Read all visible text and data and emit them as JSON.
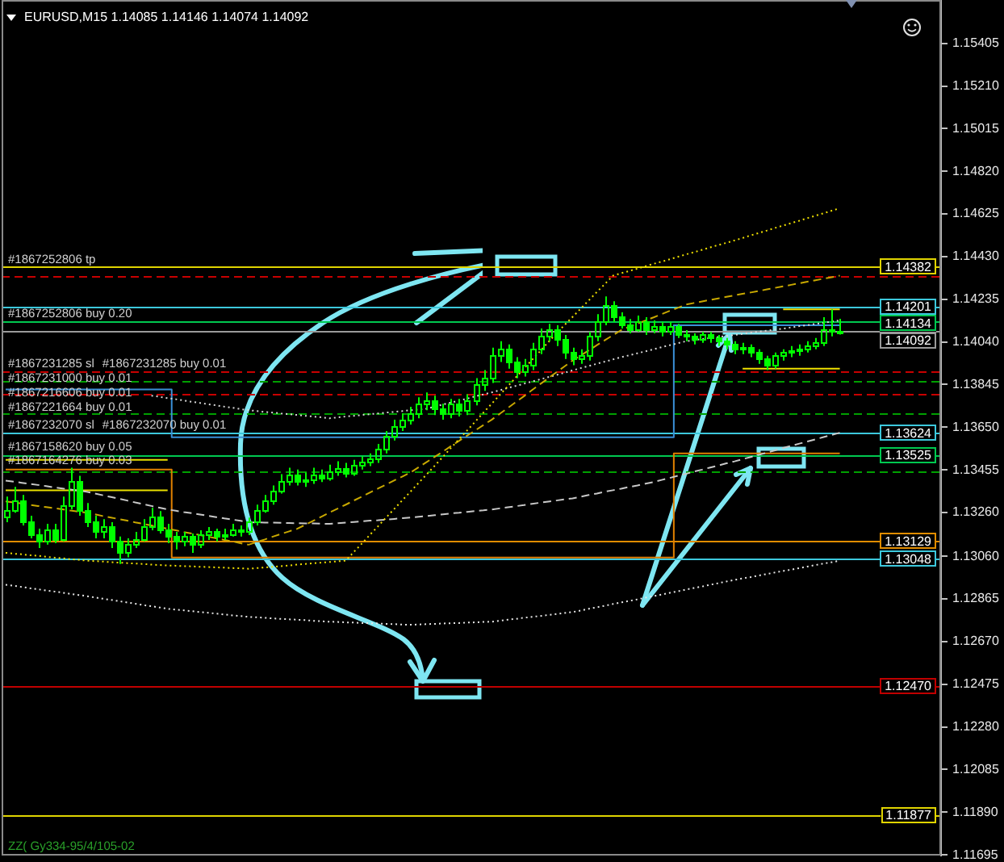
{
  "chart_data": {
    "type": "candlestick",
    "title": "EURUSD,M15 1.14085 1.14146 1.14074 1.14092",
    "categories": [
      null,
      null,
      null,
      null,
      null,
      null,
      null,
      null,
      null,
      null,
      null,
      null,
      null,
      null,
      null,
      null,
      null,
      null,
      null,
      null,
      null,
      null,
      null,
      null,
      null,
      null,
      null,
      null,
      null,
      null,
      null,
      null,
      null,
      null,
      null,
      null,
      null,
      null,
      null,
      null,
      null,
      null,
      null,
      null,
      null,
      null,
      null,
      null,
      null,
      null,
      null,
      null,
      null,
      null,
      null,
      null,
      null,
      null,
      null,
      null,
      null,
      null,
      null,
      null,
      null,
      null,
      null,
      null,
      null,
      null,
      null,
      null,
      null,
      null,
      null,
      null,
      null,
      null,
      null,
      null,
      null,
      null,
      null,
      null,
      null,
      null,
      null,
      null,
      null,
      null,
      null,
      null,
      null,
      null,
      null,
      null,
      null,
      null,
      null,
      null,
      null,
      null,
      null,
      null
    ],
    "ohlc": [
      [
        1.13245,
        1.13333,
        1.13216,
        1.13274
      ],
      [
        1.13274,
        1.13377,
        1.13259,
        1.13318
      ],
      [
        1.13318,
        1.1334,
        1.13201,
        1.13223
      ],
      [
        1.13223,
        1.13245,
        1.13142,
        1.13164
      ],
      [
        1.13164,
        1.13186,
        1.13098,
        1.13128
      ],
      [
        1.13128,
        1.13208,
        1.13113,
        1.13186
      ],
      [
        1.13186,
        1.13208,
        1.1312,
        1.13142
      ],
      [
        1.13142,
        1.13333,
        1.13128,
        1.13296
      ],
      [
        1.13296,
        1.13465,
        1.13274,
        1.13406
      ],
      [
        1.13406,
        1.13428,
        1.13245,
        1.13274
      ],
      [
        1.13274,
        1.13303,
        1.13194,
        1.13223
      ],
      [
        1.13223,
        1.13245,
        1.13142,
        1.13172
      ],
      [
        1.13172,
        1.1323,
        1.13142,
        1.13201
      ],
      [
        1.13201,
        1.13216,
        1.13098,
        1.13128
      ],
      [
        1.13128,
        1.1315,
        1.13025,
        1.13076
      ],
      [
        1.13076,
        1.13142,
        1.13055,
        1.13113
      ],
      [
        1.13113,
        1.13172,
        1.13098,
        1.13142
      ],
      [
        1.13142,
        1.1323,
        1.13128,
        1.13201
      ],
      [
        1.13201,
        1.13281,
        1.13179,
        1.13245
      ],
      [
        1.13245,
        1.13267,
        1.13164,
        1.13186
      ],
      [
        1.13186,
        1.13208,
        1.1312,
        1.1315
      ],
      [
        1.1315,
        1.13172,
        1.13091,
        1.13128
      ],
      [
        1.13128,
        1.13172,
        1.13106,
        1.1315
      ],
      [
        1.1315,
        1.13164,
        1.13076,
        1.13113
      ],
      [
        1.13113,
        1.13179,
        1.13098,
        1.13157
      ],
      [
        1.13157,
        1.13194,
        1.13135,
        1.13172
      ],
      [
        1.13172,
        1.13186,
        1.13128,
        1.1315
      ],
      [
        1.1315,
        1.13186,
        1.13135,
        1.13164
      ],
      [
        1.13164,
        1.13208,
        1.1315,
        1.13186
      ],
      [
        1.13186,
        1.13201,
        1.1315,
        1.13172
      ],
      [
        1.13172,
        1.13237,
        1.13157,
        1.13216
      ],
      [
        1.13216,
        1.13296,
        1.13201,
        1.13274
      ],
      [
        1.13274,
        1.1334,
        1.13259,
        1.13318
      ],
      [
        1.13318,
        1.13384,
        1.13296,
        1.13362
      ],
      [
        1.13362,
        1.13435,
        1.13347,
        1.13406
      ],
      [
        1.13406,
        1.13465,
        1.13384,
        1.13435
      ],
      [
        1.13435,
        1.13457,
        1.13384,
        1.13406
      ],
      [
        1.13406,
        1.13443,
        1.13377,
        1.13413
      ],
      [
        1.13413,
        1.13465,
        1.13391,
        1.13435
      ],
      [
        1.13435,
        1.13457,
        1.13399,
        1.13421
      ],
      [
        1.13421,
        1.13479,
        1.13406,
        1.1345
      ],
      [
        1.1345,
        1.13494,
        1.13428,
        1.13465
      ],
      [
        1.13465,
        1.13487,
        1.13421,
        1.13443
      ],
      [
        1.13443,
        1.13501,
        1.13428,
        1.13479
      ],
      [
        1.13479,
        1.13516,
        1.13457,
        1.13494
      ],
      [
        1.13494,
        1.1353,
        1.13472,
        1.13509
      ],
      [
        1.13509,
        1.13574,
        1.13487,
        1.13552
      ],
      [
        1.13552,
        1.13633,
        1.1353,
        1.13611
      ],
      [
        1.13611,
        1.13684,
        1.13589,
        1.13655
      ],
      [
        1.13655,
        1.13713,
        1.13633,
        1.13684
      ],
      [
        1.13684,
        1.13743,
        1.13662,
        1.13713
      ],
      [
        1.13713,
        1.13787,
        1.13691,
        1.13757
      ],
      [
        1.13757,
        1.13809,
        1.13728,
        1.13772
      ],
      [
        1.13772,
        1.13794,
        1.13706,
        1.13735
      ],
      [
        1.13735,
        1.13757,
        1.13684,
        1.13713
      ],
      [
        1.13713,
        1.13779,
        1.13691,
        1.13757
      ],
      [
        1.13757,
        1.13779,
        1.13699,
        1.13728
      ],
      [
        1.13728,
        1.13801,
        1.13706,
        1.13772
      ],
      [
        1.13772,
        1.13874,
        1.1375,
        1.13845
      ],
      [
        1.13845,
        1.13911,
        1.13816,
        1.13874
      ],
      [
        1.13874,
        1.14014,
        1.13852,
        1.13977
      ],
      [
        1.13977,
        1.14043,
        1.13948,
        1.14006
      ],
      [
        1.14006,
        1.14028,
        1.13918,
        1.13948
      ],
      [
        1.13948,
        1.1397,
        1.13874,
        1.13904
      ],
      [
        1.13904,
        1.13962,
        1.13882,
        1.13933
      ],
      [
        1.13933,
        1.14036,
        1.13911,
        1.14006
      ],
      [
        1.14006,
        1.14101,
        1.13984,
        1.14065
      ],
      [
        1.14065,
        1.14123,
        1.14043,
        1.14094
      ],
      [
        1.14094,
        1.14116,
        1.14021,
        1.1405
      ],
      [
        1.1405,
        1.14072,
        1.13962,
        1.13992
      ],
      [
        1.13992,
        1.14014,
        1.13933,
        1.13962
      ],
      [
        1.13962,
        1.14006,
        1.1394,
        1.13977
      ],
      [
        1.13977,
        1.14087,
        1.13955,
        1.14065
      ],
      [
        1.14065,
        1.14167,
        1.14043,
        1.14138
      ],
      [
        1.14138,
        1.14248,
        1.14116,
        1.14211
      ],
      [
        1.14211,
        1.14226,
        1.14131,
        1.14153
      ],
      [
        1.14153,
        1.14175,
        1.14101,
        1.14123
      ],
      [
        1.14123,
        1.14145,
        1.14079,
        1.14101
      ],
      [
        1.14101,
        1.1416,
        1.14087,
        1.14138
      ],
      [
        1.14138,
        1.14153,
        1.14072,
        1.14094
      ],
      [
        1.14094,
        1.14138,
        1.14079,
        1.14116
      ],
      [
        1.14116,
        1.14131,
        1.14065,
        1.14087
      ],
      [
        1.14087,
        1.14131,
        1.14072,
        1.14109
      ],
      [
        1.14109,
        1.14123,
        1.14058,
        1.14079
      ],
      [
        1.14079,
        1.14094,
        1.14043,
        1.14065
      ],
      [
        1.14065,
        1.14079,
        1.14028,
        1.1405
      ],
      [
        1.1405,
        1.14087,
        1.14036,
        1.14072
      ],
      [
        1.14072,
        1.14087,
        1.14036,
        1.14058
      ],
      [
        1.14058,
        1.14072,
        1.14021,
        1.14043
      ],
      [
        1.14043,
        1.14058,
        1.14006,
        1.14028
      ],
      [
        1.14028,
        1.14043,
        1.13984,
        1.14006
      ],
      [
        1.14006,
        1.14036,
        1.13984,
        1.14014
      ],
      [
        1.14014,
        1.14028,
        1.1397,
        1.13992
      ],
      [
        1.13992,
        1.14006,
        1.1394,
        1.13962
      ],
      [
        1.13962,
        1.13977,
        1.13911,
        1.13933
      ],
      [
        1.13933,
        1.13992,
        1.13918,
        1.13977
      ],
      [
        1.13977,
        1.14006,
        1.13955,
        1.13992
      ],
      [
        1.13992,
        1.14021,
        1.1397,
        1.13999
      ],
      [
        1.13999,
        1.14028,
        1.13977,
        1.14006
      ],
      [
        1.14006,
        1.14043,
        1.13992,
        1.14021
      ],
      [
        1.14021,
        1.14058,
        1.14006,
        1.14036
      ],
      [
        1.14036,
        1.14153,
        1.14021,
        1.14101
      ],
      [
        1.14101,
        1.14189,
        1.14065,
        1.14087
      ],
      [
        1.14085,
        1.14146,
        1.14074,
        1.14092
      ]
    ],
    "color": "#00ff00",
    "series": [
      {
        "type": "line",
        "color": "#f0e000",
        "line_style": "dotted",
        "values": [
          1.13076,
          1.13072,
          1.13069,
          1.13065,
          1.13062,
          1.13058,
          1.13054,
          1.13051,
          1.13047,
          1.13044,
          1.1304,
          1.13038,
          1.13036,
          1.13033,
          1.13031,
          1.13029,
          1.13027,
          1.13025,
          1.13022,
          1.1302,
          1.13018,
          1.13017,
          1.13015,
          1.13014,
          1.13012,
          1.13011,
          1.13009,
          1.13008,
          1.13006,
          1.13005,
          1.13003,
          1.13006,
          1.13009,
          1.13012,
          1.13015,
          1.13018,
          1.13022,
          1.13025,
          1.13028,
          1.13031,
          1.13034,
          1.13037,
          1.1304,
          1.1308,
          1.13119,
          1.13159,
          1.13198,
          1.13238,
          1.13277,
          1.13317,
          1.13356,
          1.13396,
          1.13435,
          1.13475,
          1.13515,
          1.13556,
          1.13596,
          1.13636,
          1.13676,
          1.13717,
          1.13757,
          1.13797,
          1.13837,
          1.13878,
          1.13918,
          1.13958,
          1.13998,
          1.14039,
          1.14079,
          1.14117,
          1.14154,
          1.14192,
          1.1423,
          1.14268,
          1.14305,
          1.14343,
          1.14354,
          1.14364,
          1.14375,
          1.14386,
          1.14397,
          1.14407,
          1.14418,
          1.14429,
          1.1444,
          1.1445,
          1.14461,
          1.14472,
          1.14483,
          1.14493,
          1.14504,
          1.14515,
          1.14527,
          1.14538,
          1.14549,
          1.14561,
          1.14572,
          1.14583,
          1.14594,
          1.14606,
          1.14617,
          1.14628,
          1.1464,
          1.14651
        ]
      },
      {
        "type": "line",
        "color": "#c8a800",
        "line_style": "dashed",
        "values": [
          1.13311,
          1.13306,
          1.13301,
          1.13295,
          1.1329,
          1.13285,
          1.1328,
          1.13275,
          1.13269,
          1.13264,
          1.13259,
          1.13252,
          1.13244,
          1.13237,
          1.1323,
          1.13223,
          1.13215,
          1.13208,
          1.13201,
          1.13193,
          1.13186,
          1.13179,
          1.13171,
          1.13164,
          1.13157,
          1.1315,
          1.13142,
          1.13135,
          1.13128,
          1.1312,
          1.13113,
          1.13125,
          1.13137,
          1.1315,
          1.13162,
          1.13174,
          1.13186,
          1.13204,
          1.13223,
          1.13241,
          1.1326,
          1.13278,
          1.13296,
          1.13315,
          1.13333,
          1.13352,
          1.1337,
          1.13388,
          1.13407,
          1.13425,
          1.13443,
          1.13467,
          1.13491,
          1.13515,
          1.13539,
          1.13564,
          1.13588,
          1.13612,
          1.13636,
          1.1366,
          1.13684,
          1.13711,
          1.13738,
          1.13765,
          1.13792,
          1.1382,
          1.13847,
          1.13874,
          1.13901,
          1.13928,
          1.13955,
          1.13978,
          1.14001,
          1.14025,
          1.14048,
          1.14071,
          1.14094,
          1.14109,
          1.14123,
          1.14138,
          1.14152,
          1.14167,
          1.14182,
          1.14196,
          1.14211,
          1.14218,
          1.14225,
          1.14232,
          1.14239,
          1.14246,
          1.14253,
          1.1426,
          1.14266,
          1.14273,
          1.1428,
          1.14287,
          1.14294,
          1.14301,
          1.14308,
          1.14315,
          1.14322,
          1.14329,
          1.14336,
          1.14343
        ]
      },
      {
        "type": "line",
        "color": "#c8c8c8",
        "line_style": "dashed",
        "values": [
          1.13406,
          1.13401,
          1.13396,
          1.13391,
          1.13386,
          1.13381,
          1.13375,
          1.1337,
          1.13365,
          1.1336,
          1.13355,
          1.13347,
          1.13339,
          1.13331,
          1.13323,
          1.13315,
          1.13306,
          1.13298,
          1.1329,
          1.13282,
          1.13274,
          1.13268,
          1.13262,
          1.13257,
          1.13251,
          1.13245,
          1.13239,
          1.13233,
          1.13228,
          1.13222,
          1.13216,
          1.13215,
          1.13214,
          1.13214,
          1.13213,
          1.13212,
          1.13211,
          1.1321,
          1.1321,
          1.13209,
          1.13208,
          1.13211,
          1.13214,
          1.13217,
          1.1322,
          1.13223,
          1.13225,
          1.13228,
          1.13231,
          1.13234,
          1.13237,
          1.13241,
          1.13244,
          1.13248,
          1.13252,
          1.13256,
          1.13259,
          1.13263,
          1.13267,
          1.1327,
          1.13274,
          1.13279,
          1.13284,
          1.13289,
          1.13294,
          1.133,
          1.13305,
          1.1331,
          1.13315,
          1.1332,
          1.13325,
          1.13332,
          1.1334,
          1.13347,
          1.13355,
          1.13362,
          1.13369,
          1.13377,
          1.13384,
          1.13392,
          1.13399,
          1.13409,
          1.13418,
          1.13428,
          1.13437,
          1.13447,
          1.13456,
          1.13466,
          1.13475,
          1.13485,
          1.13494,
          1.13504,
          1.13514,
          1.13524,
          1.13534,
          1.13544,
          1.13555,
          1.13565,
          1.13575,
          1.13585,
          1.13595,
          1.13605,
          1.13615,
          1.13625
        ]
      },
      {
        "type": "line",
        "color": "#d8d8d8",
        "line_style": "dotted",
        "values": [
          null,
          null,
          null,
          null,
          null,
          null,
          null,
          null,
          null,
          null,
          null,
          null,
          null,
          null,
          null,
          null,
          null,
          null,
          1.13794,
          1.13789,
          1.13783,
          1.13778,
          1.13772,
          1.13766,
          1.13761,
          1.13755,
          1.1375,
          1.13744,
          1.13739,
          1.13733,
          1.13728,
          1.13724,
          1.1372,
          1.13717,
          1.13713,
          1.1371,
          1.13706,
          1.13702,
          1.13699,
          1.13695,
          1.13691,
          1.13695,
          1.13699,
          1.13702,
          1.13706,
          1.1371,
          1.13713,
          1.13717,
          1.1372,
          1.13724,
          1.13728,
          1.13731,
          1.13735,
          1.13744,
          1.13754,
          1.13763,
          1.13772,
          1.13781,
          1.13791,
          1.138,
          1.13809,
          1.13819,
          1.13829,
          1.13839,
          1.13849,
          1.13859,
          1.13869,
          1.13879,
          1.13889,
          1.13899,
          1.1391,
          1.1392,
          1.1393,
          1.1394,
          1.1395,
          1.1396,
          1.1397,
          1.13979,
          1.13988,
          1.13997,
          1.14006,
          1.14016,
          1.14025,
          1.14034,
          1.14043,
          1.14048,
          1.14053,
          1.14058,
          1.14062,
          1.14067,
          1.14072,
          1.14077,
          1.14082,
          1.14087,
          1.14091,
          1.14096,
          1.14101,
          1.14106,
          1.14112,
          1.14117,
          1.14122,
          1.14127,
          1.14133,
          1.14138
        ]
      },
      {
        "type": "line",
        "color": "#e8e8e8",
        "line_style": "dotted",
        "values": [
          1.1293,
          1.12925,
          1.1292,
          1.12914,
          1.12909,
          1.12904,
          1.12899,
          1.12894,
          1.12888,
          1.12883,
          1.12878,
          1.12872,
          1.12866,
          1.12861,
          1.12855,
          1.12849,
          1.12843,
          1.12837,
          1.12832,
          1.12826,
          1.1282,
          1.12816,
          1.12813,
          1.12809,
          1.12805,
          1.12802,
          1.12798,
          1.12794,
          1.1279,
          1.12787,
          1.12783,
          1.12781,
          1.12779,
          1.12776,
          1.12774,
          1.12772,
          1.1277,
          1.12768,
          1.12765,
          1.12763,
          1.12761,
          1.1276,
          1.12758,
          1.12757,
          1.12755,
          1.12754,
          1.12753,
          1.12751,
          1.1275,
          1.12748,
          1.12747,
          1.12748,
          1.1275,
          1.12751,
          1.12753,
          1.12754,
          1.12755,
          1.12757,
          1.12758,
          1.1276,
          1.12761,
          1.12765,
          1.1277,
          1.12774,
          1.12779,
          1.12783,
          1.12787,
          1.12792,
          1.12796,
          1.12801,
          1.12805,
          1.12812,
          1.1282,
          1.12827,
          1.12834,
          1.12842,
          1.12849,
          1.12856,
          1.12863,
          1.12871,
          1.12878,
          1.12885,
          1.12893,
          1.129,
          1.12908,
          1.12915,
          1.12922,
          1.1293,
          1.12937,
          1.12945,
          1.12952,
          1.12959,
          1.12965,
          1.12972,
          1.12979,
          1.12986,
          1.12993,
          1.12999,
          1.13006,
          1.13013,
          1.1302,
          1.13027,
          1.13033,
          1.1304
        ]
      },
      {
        "type": "step",
        "color": "#3a90d8",
        "line_style": "solid",
        "values": [
          1.13823,
          1.13823,
          1.13823,
          1.13823,
          1.13823,
          1.13823,
          1.13823,
          1.13823,
          1.13823,
          1.13823,
          1.13823,
          1.13823,
          1.13823,
          1.13823,
          1.13823,
          1.13823,
          1.13823,
          1.13823,
          1.13823,
          1.13823,
          1.13823,
          1.13604,
          1.13604,
          1.13604,
          1.13604,
          1.13604,
          1.13604,
          1.13604,
          1.13604,
          1.13604,
          1.13604,
          1.13604,
          1.13604,
          1.13604,
          1.13604,
          1.13604,
          1.13604,
          1.13604,
          1.13604,
          1.13604,
          1.13604,
          1.13604,
          1.13604,
          1.13604,
          1.13604,
          1.13604,
          1.13604,
          1.13604,
          1.13604,
          1.13604,
          1.13604,
          1.13604,
          1.13604,
          1.13604,
          1.13604,
          1.13604,
          1.13604,
          1.13604,
          1.13604,
          1.13604,
          1.13604,
          1.13604,
          1.13604,
          1.13604,
          1.13604,
          1.13604,
          1.13604,
          1.13604,
          1.13604,
          1.13604,
          1.13604,
          1.13604,
          1.13604,
          1.13604,
          1.13604,
          1.13604,
          1.13604,
          1.13604,
          1.13604,
          1.13604,
          1.13604,
          1.13604,
          1.13604,
          1.14116,
          1.14116,
          1.14116,
          1.14116,
          1.14116,
          1.14116,
          1.14116,
          1.14116,
          1.14116,
          1.14116,
          1.14116,
          1.14116,
          1.14116,
          1.14116,
          1.14116,
          1.14116,
          1.14116,
          1.14116,
          1.14116,
          1.14116,
          1.14116
        ]
      },
      {
        "type": "step",
        "color": "#e08000",
        "line_style": "solid",
        "values": [
          1.13457,
          1.13457,
          1.13457,
          1.13457,
          1.13457,
          1.13457,
          1.13457,
          1.13457,
          1.13457,
          1.13457,
          1.13457,
          1.13457,
          1.13457,
          1.13457,
          1.13457,
          1.13457,
          1.13457,
          1.13457,
          1.13457,
          1.13457,
          1.13457,
          1.13054,
          1.13054,
          1.13054,
          1.13054,
          1.13054,
          1.13054,
          1.13054,
          1.13054,
          1.13054,
          1.13054,
          1.13054,
          1.13054,
          1.13054,
          1.13054,
          1.13054,
          1.13054,
          1.13054,
          1.13054,
          1.13054,
          1.13054,
          1.13054,
          1.13054,
          1.13054,
          1.13054,
          1.13054,
          1.13054,
          1.13054,
          1.13054,
          1.13054,
          1.13054,
          1.13054,
          1.13054,
          1.13054,
          1.13054,
          1.13054,
          1.13054,
          1.13054,
          1.13054,
          1.13054,
          1.13054,
          1.13054,
          1.13054,
          1.13054,
          1.13054,
          1.13054,
          1.13054,
          1.13054,
          1.13054,
          1.13054,
          1.13054,
          1.13054,
          1.13054,
          1.13054,
          1.13054,
          1.13054,
          1.13054,
          1.13054,
          1.13054,
          1.13054,
          1.13054,
          1.13054,
          1.13054,
          1.1353,
          1.1353,
          1.1353,
          1.1353,
          1.1353,
          1.1353,
          1.1353,
          1.1353,
          1.1353,
          1.1353,
          1.1353,
          1.1353,
          1.1353,
          1.1353,
          1.1353,
          1.1353,
          1.1353,
          1.1353,
          1.1353,
          1.1353,
          1.1353
        ]
      },
      {
        "type": "line",
        "color": "#f0e000",
        "line_style": "solid",
        "values": [
          null,
          null,
          null,
          null,
          null,
          null,
          null,
          null,
          null,
          null,
          null,
          null,
          null,
          null,
          null,
          null,
          null,
          null,
          null,
          null,
          null,
          null,
          null,
          null,
          null,
          null,
          null,
          null,
          null,
          null,
          null,
          null,
          null,
          null,
          null,
          null,
          null,
          null,
          null,
          null,
          null,
          null,
          null,
          null,
          null,
          null,
          null,
          null,
          null,
          null,
          null,
          null,
          null,
          null,
          null,
          null,
          null,
          null,
          null,
          null,
          null,
          null,
          null,
          null,
          null,
          null,
          null,
          null,
          null,
          null,
          null,
          null,
          null,
          null,
          null,
          null,
          null,
          null,
          null,
          null,
          null,
          null,
          null,
          null,
          null,
          null,
          null,
          null,
          null,
          null,
          null,
          null,
          null,
          null,
          null,
          null,
          1.14189,
          1.14189,
          1.14189,
          1.14189,
          1.14189,
          1.14189,
          1.14189,
          1.14189
        ]
      },
      {
        "type": "line",
        "color": "#f0e000",
        "line_style": "solid",
        "values": [
          null,
          null,
          null,
          null,
          null,
          null,
          null,
          null,
          null,
          null,
          null,
          null,
          null,
          null,
          null,
          null,
          null,
          null,
          null,
          null,
          null,
          null,
          null,
          null,
          null,
          null,
          null,
          null,
          null,
          null,
          null,
          null,
          null,
          null,
          null,
          null,
          null,
          null,
          null,
          null,
          null,
          null,
          null,
          null,
          null,
          null,
          null,
          null,
          null,
          null,
          null,
          null,
          null,
          null,
          null,
          null,
          null,
          null,
          null,
          null,
          null,
          null,
          null,
          null,
          null,
          null,
          null,
          null,
          null,
          null,
          null,
          null,
          null,
          null,
          null,
          null,
          null,
          null,
          null,
          null,
          null,
          null,
          null,
          null,
          null,
          null,
          null,
          null,
          null,
          null,
          null,
          1.13918,
          1.13918,
          1.13918,
          1.13918,
          1.13918,
          1.13918,
          1.13918,
          1.13918,
          1.13918,
          1.13918,
          1.13918,
          1.13918,
          1.13918
        ]
      },
      {
        "type": "line",
        "color": "#e8e000",
        "line_style": "solid",
        "values": [
          1.13501,
          1.13501,
          1.13501,
          1.13501,
          1.13501,
          1.13501,
          1.13501,
          1.13501,
          1.13501,
          1.13501,
          1.13501,
          1.13501,
          1.13501,
          1.13501,
          1.13501,
          1.13501,
          1.13501,
          1.13501,
          1.13501,
          1.13501,
          1.13501,
          null,
          null,
          null,
          null,
          null,
          null,
          null,
          null,
          null,
          null,
          null,
          null,
          null,
          null,
          null,
          null,
          null,
          null,
          null,
          null,
          null,
          null,
          null,
          null,
          null,
          null,
          null,
          null,
          null,
          null,
          null,
          null,
          null,
          null,
          null,
          null,
          null,
          null,
          null,
          null,
          null,
          null,
          null,
          null,
          null,
          null,
          null,
          null,
          null,
          null,
          null,
          null,
          null,
          null,
          null,
          null,
          null,
          null,
          null,
          null,
          null,
          null,
          null,
          null,
          null,
          null,
          null,
          null,
          null,
          null,
          null,
          null,
          null,
          null,
          null,
          null,
          null,
          null,
          null,
          null,
          null,
          null,
          null
        ]
      },
      {
        "type": "line",
        "color": "#e8e000",
        "line_style": "solid",
        "values": [
          1.13362,
          1.13362,
          1.13362,
          1.13362,
          1.13362,
          1.13362,
          1.13362,
          1.13362,
          1.13362,
          1.13362,
          1.13362,
          1.13362,
          1.13362,
          1.13362,
          1.13362,
          1.13362,
          1.13362,
          1.13362,
          1.13362,
          1.13362,
          1.13362,
          null,
          null,
          null,
          null,
          null,
          null,
          null,
          null,
          null,
          null,
          null,
          null,
          null,
          null,
          null,
          null,
          null,
          null,
          null,
          null,
          null,
          null,
          null,
          null,
          null,
          null,
          null,
          null,
          null,
          null,
          null,
          null,
          null,
          null,
          null,
          null,
          null,
          null,
          null,
          null,
          null,
          null,
          null,
          null,
          null,
          null,
          null,
          null,
          null,
          null,
          null,
          null,
          null,
          null,
          null,
          null,
          null,
          null,
          null,
          null,
          null,
          null,
          null,
          null,
          null,
          null,
          null,
          null,
          null,
          null,
          null,
          null,
          null,
          null,
          null,
          null,
          null,
          null,
          null,
          null,
          null,
          null,
          null
        ]
      }
    ],
    "ylim": [
      1.11692,
      1.15603
    ],
    "yticks": [
      1.15405,
      {
        "value": 1.1521,
        "label": "1.15210"
      },
      1.15015,
      {
        "value": 1.1482,
        "label": "1.14820"
      },
      1.14625,
      {
        "value": 1.1443,
        "label": "1.14430"
      },
      1.14235,
      {
        "value": 1.1404,
        "label": "1.14040"
      },
      1.13845,
      {
        "value": 1.1365,
        "label": "1.13650"
      },
      1.13455,
      {
        "value": 1.1326,
        "label": "1.13260"
      },
      {
        "value": 1.1306,
        "label": "1.13060"
      },
      1.12865,
      {
        "value": 1.1267,
        "label": "1.12670"
      },
      1.12475,
      {
        "value": 1.1228,
        "label": "1.12280"
      },
      1.12085,
      {
        "value": 1.1189,
        "label": "1.11890"
      },
      1.11695
    ],
    "grid": false,
    "tick_labels": "y",
    "ref_lines": [
      {
        "axis": "y",
        "value": 1.14382,
        "label": "1.14382",
        "color": "#e0d400",
        "line_style": "solid"
      },
      {
        "axis": "y",
        "value": 1.14343,
        "color": "#c80000",
        "line_style": "dashed"
      },
      {
        "axis": "y",
        "value": 1.14201,
        "label": "1.14201",
        "color": "#3cc8dc",
        "line_style": "solid"
      },
      {
        "axis": "y",
        "value": 1.14134,
        "label": "1.14134",
        "color": "#00c850",
        "line_style": "solid"
      },
      {
        "axis": "y",
        "value": 1.14092,
        "label": "1.14092",
        "color": "#9a9a9a",
        "line_style": "solid"
      },
      {
        "axis": "y",
        "value": 1.13904,
        "color": "#c80000",
        "line_style": "dashed"
      },
      {
        "axis": "y",
        "value": 1.1386,
        "color": "#00a000",
        "line_style": "dashed"
      },
      {
        "axis": "y",
        "value": 1.13801,
        "color": "#c80000",
        "line_style": "dashed"
      },
      {
        "axis": "y",
        "value": 1.13713,
        "color": "#00a000",
        "line_style": "dashed"
      },
      {
        "axis": "y",
        "value": 1.13624,
        "label": "1.13624",
        "color": "#3cc8dc",
        "line_style": "solid"
      },
      {
        "axis": "y",
        "value": 1.13525,
        "label": "1.13525",
        "color": "#00c850",
        "line_style": "solid"
      },
      {
        "axis": "y",
        "value": 1.1345,
        "color": "#00a000",
        "line_style": "dashed"
      },
      {
        "axis": "y",
        "value": 1.13129,
        "label": "1.13129",
        "color": "#e08c00",
        "line_style": "solid"
      },
      {
        "axis": "y",
        "value": 1.13048,
        "label": "1.13048",
        "color": "#3cc8dc",
        "line_style": "solid"
      },
      {
        "axis": "y",
        "value": 1.1247,
        "label": "1.12470",
        "color": "#c00000",
        "line_style": "solid"
      },
      {
        "axis": "y",
        "value": 1.11877,
        "label": "1.11877",
        "color": "#e0d400",
        "line_style": "solid"
      }
    ],
    "annotations": [
      {
        "text": "#1867252806 tp",
        "y": 1.14382
      },
      {
        "text": "#1867252806 buy 0.20",
        "y": 1.14134
      },
      {
        "text": "#1867231285 sl",
        "y": 1.13904
      },
      {
        "text": "#1867231285 buy 0.01",
        "y": 1.13904
      },
      {
        "text": "#1867231000 buy 0.01",
        "y": 1.1386
      },
      {
        "text": "#1867216606 buy 0.01",
        "y": 1.13801
      },
      {
        "text": "#1867221664 buy 0.01",
        "y": 1.13713
      },
      {
        "text": "#1867232070 sl",
        "y": 1.13624
      },
      {
        "text": "#1867232070 buy 0.01",
        "y": 1.13624
      },
      {
        "text": "#1867158620 buy 0.05",
        "y": 1.13525
      },
      {
        "text": "#1867164276 buy 0.03",
        "y": 1.13472
      },
      "ZZ( Gy334-95/4/105-02"
    ]
  }
}
